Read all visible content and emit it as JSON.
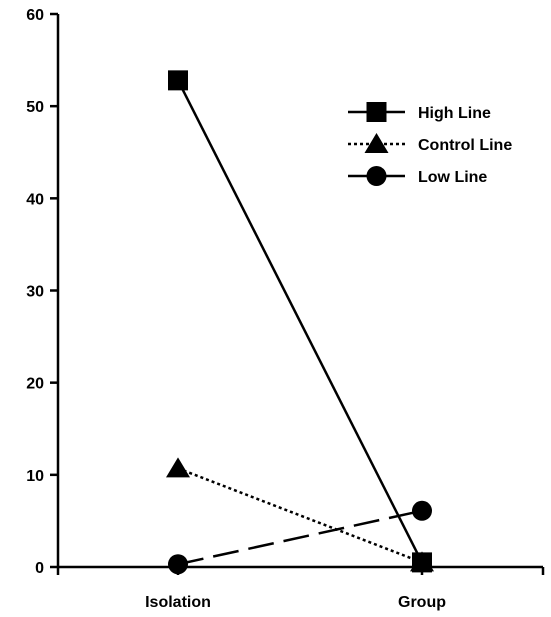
{
  "chart_data": {
    "type": "line",
    "title": "",
    "xlabel": "",
    "ylabel": "",
    "categories": [
      "Isolation",
      "Group"
    ],
    "ylim": [
      0,
      60
    ],
    "yticks": [
      0,
      10,
      20,
      30,
      40,
      50,
      60
    ],
    "grid": false,
    "legend_position": "top-right",
    "series": [
      {
        "name": "High Line",
        "values": [
          52.8,
          0.5
        ],
        "marker": "square",
        "line_style": "solid",
        "color": "#000000"
      },
      {
        "name": "Control Line",
        "values": [
          10.7,
          0.5
        ],
        "marker": "triangle",
        "line_style": "dotted",
        "color": "#000000"
      },
      {
        "name": "Low Line",
        "values": [
          0.3,
          6.1
        ],
        "marker": "circle",
        "line_style": "dashed",
        "color": "#000000"
      }
    ]
  }
}
